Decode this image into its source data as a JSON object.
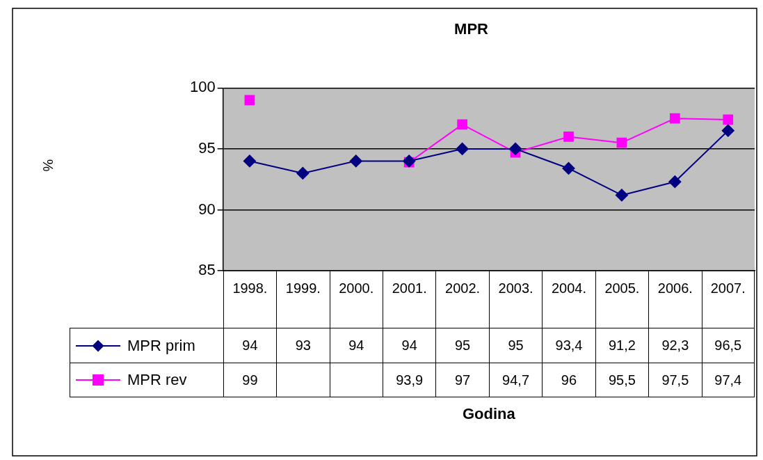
{
  "chart_data": {
    "type": "line",
    "title": "MPR",
    "annotations": [
      "%",
      "Godina"
    ],
    "categories": [
      "1998.",
      "1999.",
      "2000.",
      "2001.",
      "2002.",
      "2003.",
      "2004.",
      "2005.",
      "2006.",
      "2007."
    ],
    "series": [
      {
        "name": "MPR prim",
        "color": "#000080",
        "marker": "diamond",
        "values": [
          94,
          93,
          94,
          94,
          95,
          95,
          93.4,
          91.2,
          92.3,
          96.5
        ],
        "value_labels": [
          "94",
          "93",
          "94",
          "94",
          "95",
          "95",
          "93,4",
          "91,2",
          "92,3",
          "96,5"
        ]
      },
      {
        "name": "MPR rev",
        "color": "#ff00ff",
        "marker": "square",
        "values": [
          99,
          null,
          null,
          93.9,
          97,
          94.7,
          96,
          95.5,
          97.5,
          97.4
        ],
        "value_labels": [
          "99",
          null,
          null,
          "93,9",
          "97",
          "94,7",
          "96",
          "95,5",
          "97,5",
          "97,4"
        ]
      }
    ],
    "ylim": [
      85,
      100
    ],
    "yticks": [
      85,
      90,
      95,
      100
    ],
    "grid": "y",
    "legend": "bottom",
    "data_labels": true,
    "line_style": "solid"
  }
}
